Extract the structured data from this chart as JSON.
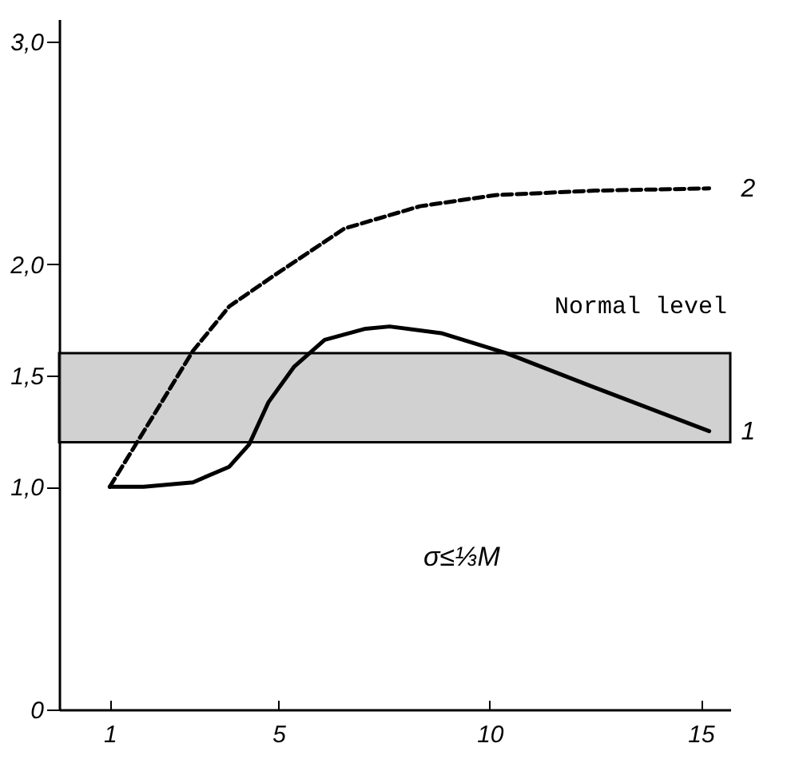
{
  "chart_data": {
    "type": "line",
    "annotations": [
      "σ≤⅓M"
    ],
    "xlim": [
      -0.2,
      15.7
    ],
    "xticks": [
      1,
      5,
      10,
      15
    ],
    "ylim": [
      0,
      3.1
    ],
    "yticks": [
      0,
      {
        "value": 1,
        "label": "1,0"
      },
      {
        "value": 1.5,
        "label": "1,5"
      },
      {
        "value": 2,
        "label": "2,0"
      },
      {
        "value": 3,
        "label": "3,0"
      }
    ],
    "bands": [
      {
        "axis": "y",
        "from": 1.2,
        "to": 1.6,
        "label": "Normal level",
        "color": "#999999"
      }
    ],
    "series": [
      {
        "name": "1",
        "color": "#000000",
        "line_style": "solid",
        "x": [
          1,
          1.8,
          2.97,
          3.83,
          4.3,
          4.76,
          5.37,
          6.09,
          7.06,
          7.63,
          8.85,
          10.4,
          12.43,
          15.2
        ],
        "values": [
          1.0,
          1.0,
          1.02,
          1.09,
          1.19,
          1.38,
          1.54,
          1.66,
          1.71,
          1.72,
          1.69,
          1.6,
          1.45,
          1.25
        ]
      },
      {
        "name": "2",
        "color": "#000000",
        "line_style": "dashed",
        "x": [
          1,
          1.68,
          2.97,
          3.83,
          4.9,
          6.56,
          8.35,
          10.14,
          12.5,
          15.2
        ],
        "values": [
          1.0,
          1.21,
          1.61,
          1.81,
          1.95,
          2.16,
          2.26,
          2.31,
          2.33,
          2.34
        ]
      }
    ]
  }
}
